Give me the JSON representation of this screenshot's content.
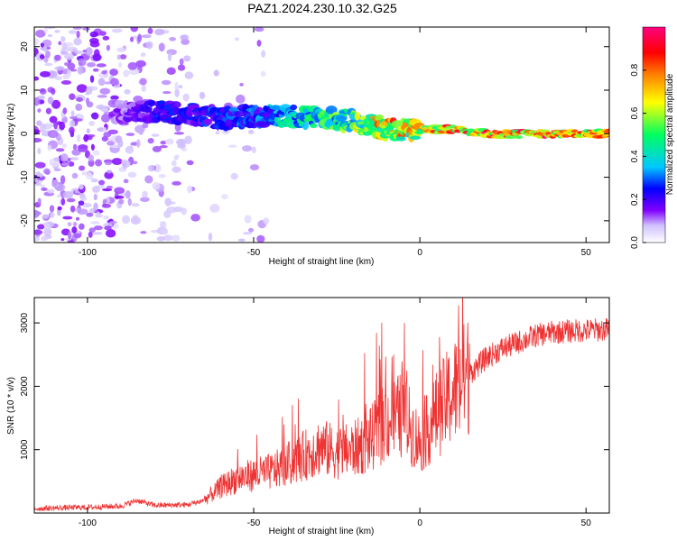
{
  "title": "PAZ1.2024.230.10.32.G25",
  "chart_data": [
    {
      "type": "heatmap",
      "xlabel": "Height of straight line (km)",
      "ylabel": "Frequency (Hz)",
      "xlim": [
        -116,
        57
      ],
      "ylim": [
        -25,
        24.5
      ],
      "xticks": [
        -100,
        -50,
        0,
        50
      ],
      "yticks": [
        -20,
        -10,
        0,
        10,
        20
      ],
      "grid": false,
      "colorbar": {
        "label": "Normalized spectral amplitude",
        "range": [
          0,
          1
        ],
        "ticks": [
          "0.0",
          "0.2",
          "0.4",
          "0.6",
          "0.8"
        ],
        "colors": [
          "#ffffff",
          "#d0c0ff",
          "#8000ff",
          "#0000ff",
          "#00c8ff",
          "#00ff60",
          "#ffff00",
          "#ff8000",
          "#ff0000",
          "#ff0080"
        ]
      },
      "ridge": {
        "x": [
          -90,
          -80,
          -70,
          -60,
          -50,
          -40,
          -30,
          -20,
          -15,
          -10,
          0,
          10,
          20,
          30,
          40,
          50,
          57
        ],
        "frequency": [
          5,
          5,
          4.5,
          3.5,
          4,
          4,
          3.5,
          3,
          2,
          1,
          1,
          1,
          0,
          0,
          0,
          0,
          0
        ],
        "amplitude": [
          0.15,
          0.25,
          0.25,
          0.3,
          0.3,
          0.45,
          0.5,
          0.6,
          0.7,
          0.85,
          0.75,
          0.85,
          0.95,
          0.95,
          0.95,
          0.9,
          0.8
        ]
      }
    },
    {
      "type": "line",
      "xlabel": "Height of straight line (km)",
      "ylabel": "SNR (10 * v/v)",
      "xlim": [
        -116,
        57
      ],
      "ylim": [
        0,
        3400
      ],
      "xticks": [
        -100,
        -50,
        0,
        50
      ],
      "yticks": [
        1000,
        2000,
        3000
      ],
      "grid": false,
      "series": [
        {
          "color": "#ee3333",
          "x": [
            -116,
            -110,
            -100,
            -90,
            -85,
            -80,
            -70,
            -65,
            -60,
            -55,
            -50,
            -45,
            -40,
            -35,
            -30,
            -25,
            -20,
            -15,
            -10,
            -5,
            0,
            5,
            10,
            15,
            20,
            25,
            30,
            35,
            40,
            45,
            50,
            57
          ],
          "values": [
            70,
            80,
            90,
            110,
            200,
            120,
            130,
            200,
            400,
            550,
            600,
            650,
            750,
            900,
            1050,
            950,
            1000,
            1150,
            1450,
            1550,
            1100,
            1550,
            1900,
            2200,
            2450,
            2600,
            2700,
            2800,
            2850,
            2870,
            2880,
            2900
          ]
        }
      ]
    }
  ]
}
